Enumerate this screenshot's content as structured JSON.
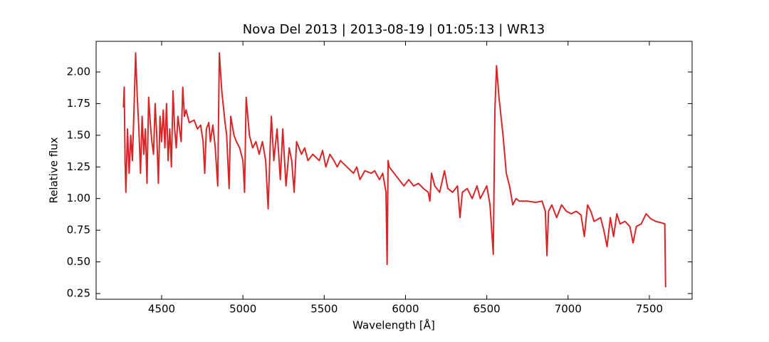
{
  "chart_data": {
    "type": "line",
    "title": "Nova Del 2013 | 2013-08-19 | 01:05:13 | WR13",
    "x_label": "Wavelength [Å]",
    "y_label": "Relative flux",
    "x": [
      4265,
      4270,
      4275,
      4280,
      4290,
      4300,
      4310,
      4320,
      4330,
      4340,
      4350,
      4360,
      4370,
      4380,
      4390,
      4400,
      4410,
      4420,
      4430,
      4440,
      4450,
      4460,
      4470,
      4480,
      4490,
      4500,
      4510,
      4520,
      4530,
      4540,
      4550,
      4560,
      4570,
      4580,
      4590,
      4600,
      4610,
      4620,
      4630,
      4640,
      4650,
      4670,
      4700,
      4720,
      4740,
      4755,
      4765,
      4775,
      4790,
      4800,
      4815,
      4830,
      4845,
      4855,
      4870,
      4890,
      4900,
      4915,
      4925,
      4945,
      4960,
      4980,
      5000,
      5010,
      5020,
      5040,
      5060,
      5080,
      5100,
      5120,
      5140,
      5155,
      5170,
      5175,
      5190,
      5210,
      5230,
      5245,
      5265,
      5285,
      5300,
      5315,
      5330,
      5360,
      5380,
      5400,
      5430,
      5470,
      5490,
      5510,
      5535,
      5560,
      5580,
      5600,
      5640,
      5680,
      5700,
      5720,
      5750,
      5790,
      5810,
      5840,
      5860,
      5880,
      5887,
      5893,
      5900,
      5930,
      5960,
      5990,
      6020,
      6050,
      6080,
      6110,
      6140,
      6150,
      6160,
      6180,
      6210,
      6240,
      6260,
      6290,
      6320,
      6335,
      6350,
      6380,
      6410,
      6440,
      6460,
      6480,
      6500,
      6520,
      6540,
      6550,
      6560,
      6575,
      6600,
      6620,
      6640,
      6660,
      6680,
      6700,
      6750,
      6800,
      6840,
      6860,
      6870,
      6880,
      6900,
      6930,
      6960,
      6990,
      7020,
      7050,
      7080,
      7100,
      7120,
      7140,
      7160,
      7200,
      7220,
      7240,
      7260,
      7280,
      7300,
      7320,
      7350,
      7380,
      7400,
      7420,
      7450,
      7480,
      7510,
      7540,
      7570,
      7595,
      7600
    ],
    "series": [
      {
        "name": "Nova Del 2013",
        "color": "#d62728",
        "values": [
          1.72,
          1.88,
          1.3,
          1.05,
          1.55,
          1.2,
          1.5,
          1.3,
          1.7,
          2.15,
          1.8,
          1.55,
          1.2,
          1.65,
          1.35,
          1.55,
          1.12,
          1.8,
          1.6,
          1.45,
          1.35,
          1.75,
          1.5,
          1.12,
          1.65,
          1.45,
          1.7,
          1.4,
          1.75,
          1.3,
          1.55,
          1.25,
          1.85,
          1.55,
          1.4,
          1.65,
          1.55,
          1.45,
          1.88,
          1.65,
          1.7,
          1.6,
          1.62,
          1.55,
          1.58,
          1.45,
          1.2,
          1.55,
          1.6,
          1.45,
          1.58,
          1.4,
          1.1,
          2.15,
          1.85,
          1.6,
          1.5,
          1.08,
          1.65,
          1.5,
          1.45,
          1.4,
          1.3,
          1.05,
          1.8,
          1.5,
          1.4,
          1.45,
          1.35,
          1.45,
          1.3,
          0.92,
          1.5,
          1.65,
          1.3,
          1.55,
          1.15,
          1.55,
          1.1,
          1.4,
          1.3,
          1.05,
          1.45,
          1.35,
          1.4,
          1.3,
          1.35,
          1.3,
          1.38,
          1.25,
          1.35,
          1.3,
          1.25,
          1.3,
          1.25,
          1.2,
          1.25,
          1.15,
          1.22,
          1.2,
          1.22,
          1.15,
          1.2,
          1.05,
          0.48,
          1.3,
          1.25,
          1.2,
          1.15,
          1.1,
          1.15,
          1.1,
          1.12,
          1.08,
          1.05,
          0.98,
          1.2,
          1.1,
          1.05,
          1.22,
          1.08,
          1.05,
          1.1,
          0.85,
          1.05,
          1.08,
          1.0,
          1.1,
          1.0,
          1.05,
          1.1,
          0.95,
          0.56,
          1.7,
          2.05,
          1.8,
          1.5,
          1.2,
          1.1,
          0.95,
          1.0,
          0.98,
          0.98,
          0.97,
          0.98,
          0.9,
          0.55,
          0.9,
          0.95,
          0.85,
          0.95,
          0.9,
          0.88,
          0.9,
          0.87,
          0.7,
          0.95,
          0.9,
          0.82,
          0.85,
          0.75,
          0.62,
          0.85,
          0.7,
          0.88,
          0.8,
          0.82,
          0.78,
          0.65,
          0.78,
          0.8,
          0.88,
          0.84,
          0.82,
          0.81,
          0.8,
          0.3
        ]
      }
    ],
    "xlim": [
      4097,
      7763
    ],
    "xticks": [
      4500,
      5000,
      5500,
      6000,
      6500,
      7000,
      7500
    ],
    "ylim": [
      0.205,
      2.242
    ],
    "yticks": [
      {
        "value": 0.25,
        "label": "0.25"
      },
      {
        "value": 0.5,
        "label": "0.50"
      },
      {
        "value": 0.75,
        "label": "0.75"
      },
      {
        "value": 1,
        "label": "1.00"
      },
      {
        "value": 1.25,
        "label": "1.25"
      },
      {
        "value": 1.5,
        "label": "1.50"
      },
      {
        "value": 1.75,
        "label": "1.75"
      },
      {
        "value": 2,
        "label": "2.00"
      }
    ]
  }
}
